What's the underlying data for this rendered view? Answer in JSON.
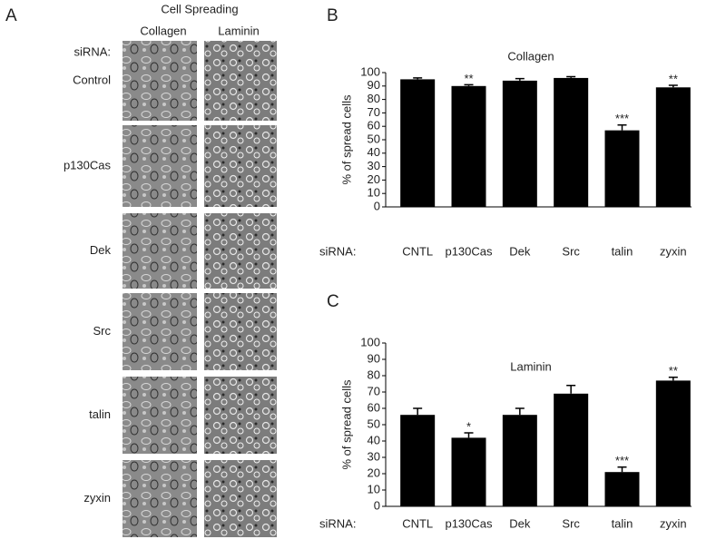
{
  "panel_labels": [
    "A",
    "B",
    "C"
  ],
  "panel_a": {
    "title": "Cell Spreading",
    "columns": [
      "Collagen",
      "Laminin"
    ],
    "row_header": "siRNA:",
    "rows": [
      "Control",
      "p130Cas",
      "Dek",
      "Src",
      "talin",
      "zyxin"
    ]
  },
  "chart_data": [
    {
      "type": "bar",
      "title": "Collagen",
      "y_label": "% of spread cells",
      "x_prefix": "siRNA:",
      "categories": [
        "CNTL",
        "p130Cas",
        "Dek",
        "Src",
        "talin",
        "zyxin"
      ],
      "values": [
        95,
        90,
        94,
        96,
        57,
        89
      ],
      "errors": [
        1,
        1,
        1.5,
        1,
        4,
        1.5
      ],
      "color": "#000000",
      "annotations": [
        {
          "index": 1,
          "text": "**"
        },
        {
          "index": 4,
          "text": "***"
        },
        {
          "index": 5,
          "text": "**"
        }
      ],
      "ylim": [
        0,
        100
      ],
      "yticks": [
        0,
        10,
        20,
        30,
        40,
        50,
        60,
        70,
        80,
        90,
        100
      ]
    },
    {
      "type": "bar",
      "title": "Laminin",
      "y_label": "% of spread cells",
      "x_prefix": "siRNA:",
      "categories": [
        "CNTL",
        "p130Cas",
        "Dek",
        "Src",
        "talin",
        "zyxin"
      ],
      "values": [
        56,
        42,
        56,
        69,
        21,
        77
      ],
      "errors": [
        4,
        3,
        4,
        5,
        3,
        2
      ],
      "color": "#000000",
      "annotations": [
        {
          "index": 1,
          "text": "*"
        },
        {
          "index": 4,
          "text": "***"
        },
        {
          "index": 5,
          "text": "**"
        }
      ],
      "ylim": [
        0,
        100
      ],
      "yticks": [
        0,
        10,
        20,
        30,
        40,
        50,
        60,
        70,
        80,
        90,
        100
      ]
    }
  ]
}
